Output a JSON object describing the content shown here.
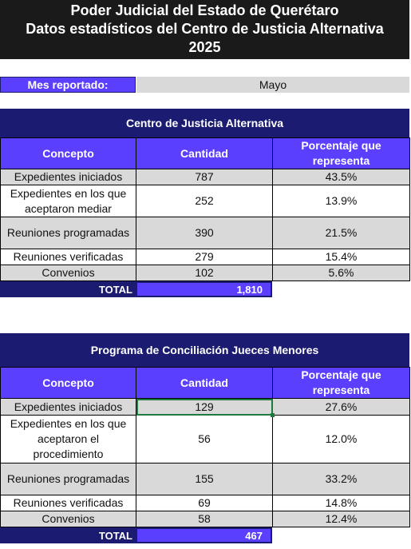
{
  "header": {
    "line1": "Poder Judicial del Estado de Querétaro",
    "line2": "Datos estadísticos del Centro de Justicia Alternativa",
    "line3": "2025"
  },
  "month": {
    "label": "Mes reportado:",
    "value": "Mayo"
  },
  "columns": {
    "concepto": "Concepto",
    "cantidad": "Cantidad",
    "porcentaje": "Porcentaje que representa"
  },
  "cja": {
    "title": "Centro de Justicia Alternativa",
    "rows": [
      {
        "concepto": "Expedientes iniciados",
        "cantidad": "787",
        "porcentaje": "43.5%"
      },
      {
        "concepto": "Expedientes en los que aceptaron mediar",
        "cantidad": "252",
        "porcentaje": "13.9%"
      },
      {
        "concepto": "Reuniones programadas",
        "cantidad": "390",
        "porcentaje": "21.5%"
      },
      {
        "concepto": "Reuniones verificadas",
        "cantidad": "279",
        "porcentaje": "15.4%"
      },
      {
        "concepto": "Convenios",
        "cantidad": "102",
        "porcentaje": "5.6%"
      }
    ],
    "total_label": "TOTAL",
    "total_value": "1,810"
  },
  "pcjm": {
    "title": "Programa de Conciliación Jueces Menores",
    "rows": [
      {
        "concepto": "Expedientes iniciados",
        "cantidad": "129",
        "porcentaje": "27.6%"
      },
      {
        "concepto": "Expedientes en los que aceptaron el procedimiento",
        "cantidad": "56",
        "porcentaje": "12.0%"
      },
      {
        "concepto": "Reuniones programadas",
        "cantidad": "155",
        "porcentaje": "33.2%"
      },
      {
        "concepto": "Reuniones verificadas",
        "cantidad": "69",
        "porcentaje": "14.8%"
      },
      {
        "concepto": "Convenios",
        "cantidad": "58",
        "porcentaje": "12.4%"
      }
    ],
    "total_label": "TOTAL",
    "total_value": "467"
  }
}
